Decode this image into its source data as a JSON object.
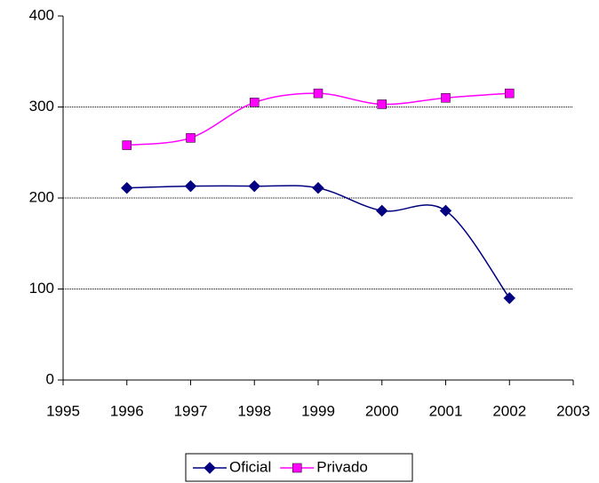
{
  "chart_data": {
    "type": "line",
    "x": [
      1996,
      1997,
      1998,
      1999,
      2000,
      2001,
      2002
    ],
    "xlim": [
      1995,
      2003
    ],
    "xticks": [
      1995,
      1996,
      1997,
      1998,
      1999,
      2000,
      2001,
      2002,
      2003
    ],
    "ylim": [
      0,
      400
    ],
    "yticks": [
      0,
      100,
      200,
      300,
      400
    ],
    "grid": true,
    "smooth": true,
    "legend": "bottom",
    "series": [
      {
        "name": "Oficial",
        "color": "#000080",
        "marker": "diamond",
        "values": [
          211,
          213,
          213,
          211,
          186,
          186,
          90
        ]
      },
      {
        "name": "Privado",
        "color": "#ff00ff",
        "marker": "square",
        "values": [
          258,
          266,
          305,
          315,
          303,
          310,
          315
        ]
      }
    ]
  }
}
